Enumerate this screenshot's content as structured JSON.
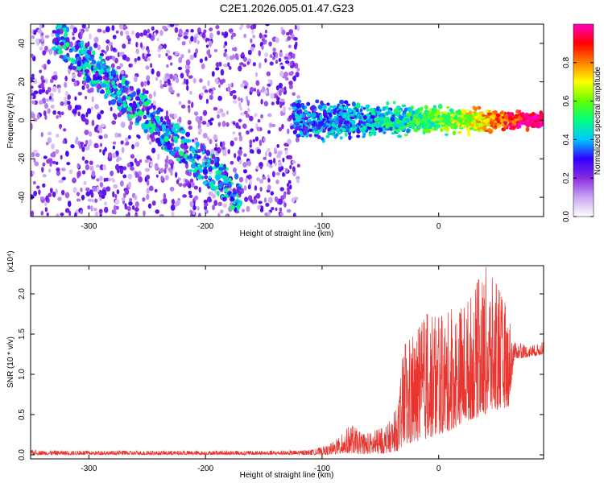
{
  "chart_data": [
    {
      "type": "heatmap",
      "title": "C2E1.2026.005.01.47.G23",
      "xlabel": "Height of straight line (km)",
      "ylabel": "Frequency (Hz)",
      "xlim": [
        -350,
        90
      ],
      "ylim": [
        -50,
        50
      ],
      "xticks": [
        -300,
        -200,
        -100,
        0
      ],
      "yticks": [
        -40,
        -20,
        0,
        20,
        40
      ],
      "colorbar": {
        "label": "Normalized spectral amplitude",
        "range": [
          0.0,
          1.0
        ],
        "ticks": [
          0.0,
          0.2,
          0.4,
          0.6,
          0.8
        ],
        "tick_labels": [
          "0.0",
          "0.2",
          "0.4",
          "0.6",
          "0.8"
        ],
        "colormap": [
          "#ffffff",
          "#c9a6f2",
          "#8a2be2",
          "#3000ff",
          "#00c8ff",
          "#00ff80",
          "#60ff00",
          "#ffff00",
          "#ff8000",
          "#ff0000",
          "#ff00c0"
        ]
      },
      "regions": [
        {
          "name": "diffuse noise band",
          "x_range": [
            -350,
            -120
          ],
          "freq_range": [
            -50,
            50
          ],
          "amplitude": 0.1
        },
        {
          "name": "descending streak",
          "x_range": [
            -330,
            -170
          ],
          "freq_start": 45,
          "freq_end": -40,
          "amplitude": 0.25
        },
        {
          "name": "signal trace",
          "x_range": [
            -125,
            90
          ],
          "freq_center": 0,
          "freq_spread": 8,
          "amplitude_start": 0.3,
          "amplitude_end": 1.0
        }
      ]
    },
    {
      "type": "line",
      "title": "",
      "xlabel": "Height of straight line (km)",
      "ylabel": "SNR (10 * v/v)",
      "multiplier": "(x10⁴)",
      "xlim": [
        -350,
        90
      ],
      "ylim": [
        -0.05,
        2.35
      ],
      "xticks": [
        -300,
        -200,
        -100,
        0
      ],
      "yticks": [
        0.0,
        0.5,
        1.0,
        1.5,
        2.0
      ],
      "ytick_labels": [
        "0.0",
        "0.5",
        "1.0",
        "1.5",
        "2.0"
      ],
      "color": "#e8352f",
      "series": [
        {
          "name": "SNR",
          "x": [
            -350,
            -300,
            -250,
            -200,
            -150,
            -110,
            -95,
            -85,
            -75,
            -65,
            -55,
            -45,
            -35,
            -30,
            -20,
            -10,
            0,
            10,
            20,
            30,
            40,
            50,
            60,
            65,
            70,
            80,
            90
          ],
          "lo": [
            0.0,
            0.0,
            0.0,
            0.0,
            0.0,
            0.0,
            0.0,
            0.01,
            0.02,
            0.01,
            0.01,
            0.02,
            0.05,
            0.1,
            0.15,
            0.2,
            0.25,
            0.3,
            0.4,
            0.45,
            0.5,
            0.55,
            0.6,
            1.2,
            1.2,
            1.22,
            1.25
          ],
          "hi": [
            0.06,
            0.05,
            0.05,
            0.05,
            0.05,
            0.06,
            0.12,
            0.22,
            0.4,
            0.25,
            0.3,
            0.35,
            0.6,
            1.35,
            1.5,
            1.75,
            1.7,
            1.8,
            1.9,
            2.05,
            2.35,
            2.1,
            1.8,
            1.4,
            1.38,
            1.36,
            1.4
          ]
        }
      ]
    }
  ]
}
